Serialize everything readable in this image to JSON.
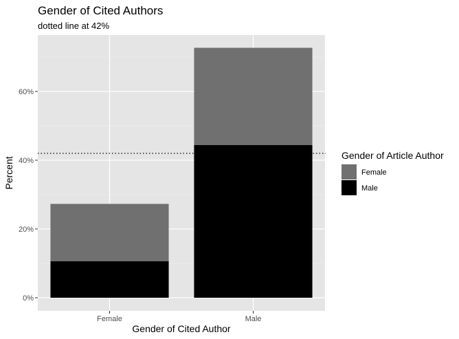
{
  "chart_data": {
    "type": "bar",
    "stacked": true,
    "title": "Gender of Cited Authors",
    "subtitle": "dotted line at 42%",
    "xlabel": "Gender of Cited Author",
    "ylabel": "Percent",
    "categories": [
      "Female",
      "Male"
    ],
    "series": [
      {
        "name": "Female",
        "values": [
          16.7,
          28.3
        ],
        "color": "#707070"
      },
      {
        "name": "Male",
        "values": [
          10.6,
          44.4
        ],
        "color": "#000000"
      }
    ],
    "ylim": [
      0,
      75
    ],
    "yticks": [
      0,
      20,
      40,
      60
    ],
    "ytick_labels": [
      "0%",
      "20%",
      "40%",
      "60%"
    ],
    "reference_line": {
      "value": 42,
      "style": "dotted"
    },
    "legend": {
      "title": "Gender of Article Author",
      "position": "right",
      "entries": [
        "Female",
        "Male"
      ]
    },
    "panel_background": "#e5e5e5",
    "grid": true
  }
}
